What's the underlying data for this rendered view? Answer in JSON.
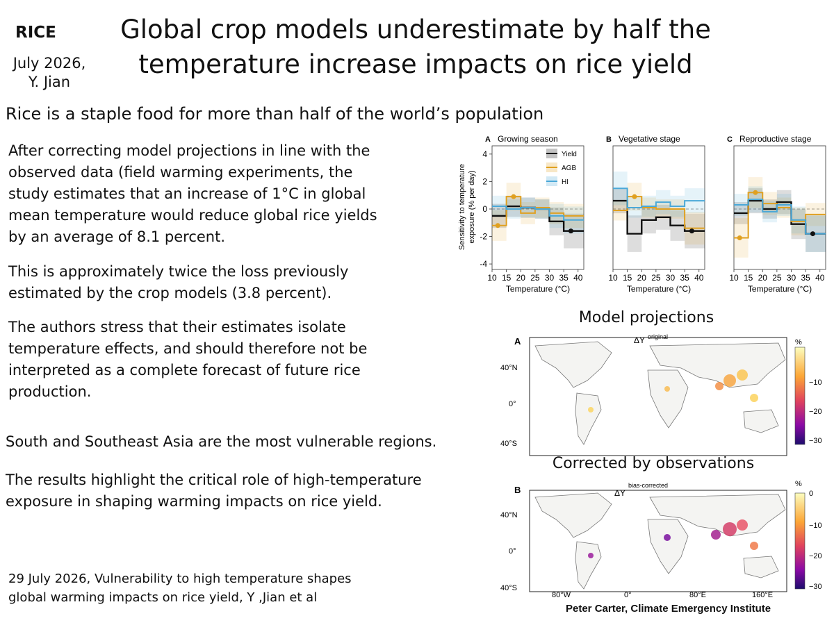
{
  "header": {
    "tag": "RICE",
    "date_line1": "July 2026,",
    "date_line2": "Y. Jian",
    "title_line1": "Global crop models underestimate by half the",
    "title_line2": "temperature increase impacts on rice yield"
  },
  "body": {
    "lead": "Rice is a staple food for more than half of the world’s population",
    "p1": [
      "After correcting model projections  in line with the",
      "observed data (field warming experiments, the",
      "study estimates that an increase of 1°C in global",
      "mean temperature would reduce global rice yields",
      "by an average of 8.1 percent."
    ],
    "p2": [
      "This is approximately twice the loss previously",
      "estimated by the crop models (3.8 percent)."
    ],
    "p3": [
      "The authors stress that their estimates isolate",
      "temperature effects, and should therefore not be",
      "interpreted as a complete forecast of future rice",
      "production."
    ],
    "p4": "South and Southeast Asia are the most vulnerable regions.",
    "p5": [
      "The results highlight the critical role of high-temperature",
      "exposure in shaping warming impacts on rice yield."
    ]
  },
  "reference": [
    "29 July 2026, Vulnerability to high temperature shapes",
    "global warming impacts on rice yield, Y ,Jian et al"
  ],
  "credit": "Peter Carter,  Climate Emergency Institute",
  "colors": {
    "yield": "#111111",
    "agb": "#e0a020",
    "hi": "#4aa8d8"
  },
  "chart_data": [
    {
      "type": "line",
      "panels": [
        {
          "letter": "A",
          "title": "Growing season"
        },
        {
          "letter": "B",
          "title": "Vegetative stage"
        },
        {
          "letter": "C",
          "title": "Reproductive stage"
        }
      ],
      "ylabel_line1": "Sensitivity to temperature",
      "ylabel_line2": "exposure (% per day)",
      "xlabel": "Temperature (°C)",
      "xlim": [
        10,
        42
      ],
      "ylim": [
        -4.4,
        4.6
      ],
      "yticks": [
        -4,
        -2,
        0,
        2,
        4
      ],
      "xticks": [
        10,
        15,
        20,
        25,
        30,
        35,
        40
      ],
      "bins": [
        [
          10,
          15
        ],
        [
          15,
          20
        ],
        [
          20,
          25
        ],
        [
          25,
          30
        ],
        [
          30,
          35
        ],
        [
          35,
          42
        ]
      ],
      "legend": [
        "Yield",
        "AGB",
        "HI"
      ],
      "legend_position": "top-right of panel A",
      "series": [
        {
          "name": "Yield",
          "panels": [
            [
              -0.5,
              0.2,
              0.1,
              0.0,
              -0.9,
              -1.6
            ],
            [
              0.6,
              -1.8,
              -0.8,
              -0.6,
              -1.2,
              -1.6
            ],
            [
              -0.3,
              0.6,
              0.0,
              0.5,
              -1.1,
              -1.8
            ]
          ]
        },
        {
          "name": "AGB",
          "panels": [
            [
              -1.2,
              0.9,
              -0.3,
              0.1,
              -0.3,
              -0.5
            ],
            [
              -0.1,
              0.9,
              0.1,
              0.0,
              0.0,
              -1.4
            ],
            [
              -2.1,
              1.2,
              0.4,
              0.1,
              -0.9,
              -0.4
            ]
          ]
        },
        {
          "name": "HI",
          "panels": [
            [
              0.2,
              0.0,
              0.1,
              0.0,
              -0.5,
              -0.8
            ],
            [
              1.5,
              0.1,
              0.2,
              0.5,
              0.2,
              0.6
            ],
            [
              0.3,
              0.7,
              -0.2,
              0.3,
              -0.8,
              -1.8
            ]
          ]
        }
      ]
    },
    {
      "type": "heatmap",
      "panel_letter": "A",
      "title": "Model projections",
      "label_main": "ΔY",
      "label_sup": "original",
      "lat_labels": [
        "40°N",
        "0°",
        "40°S"
      ],
      "colorbar_unit": "%",
      "colorbar_ticks": [
        "−10",
        "−20",
        "−30"
      ]
    },
    {
      "type": "heatmap",
      "panel_letter": "B",
      "title": "Corrected by observations",
      "label_main": "ΔY",
      "label_sup": "bias-corrected",
      "lat_labels": [
        "40°N",
        "0°",
        "40°S"
      ],
      "lon_labels": [
        "80°W",
        "0°",
        "80°E",
        "160°E"
      ],
      "colorbar_unit": "%",
      "colorbar_ticks": [
        "0",
        "−10",
        "−20",
        "−30"
      ]
    }
  ]
}
